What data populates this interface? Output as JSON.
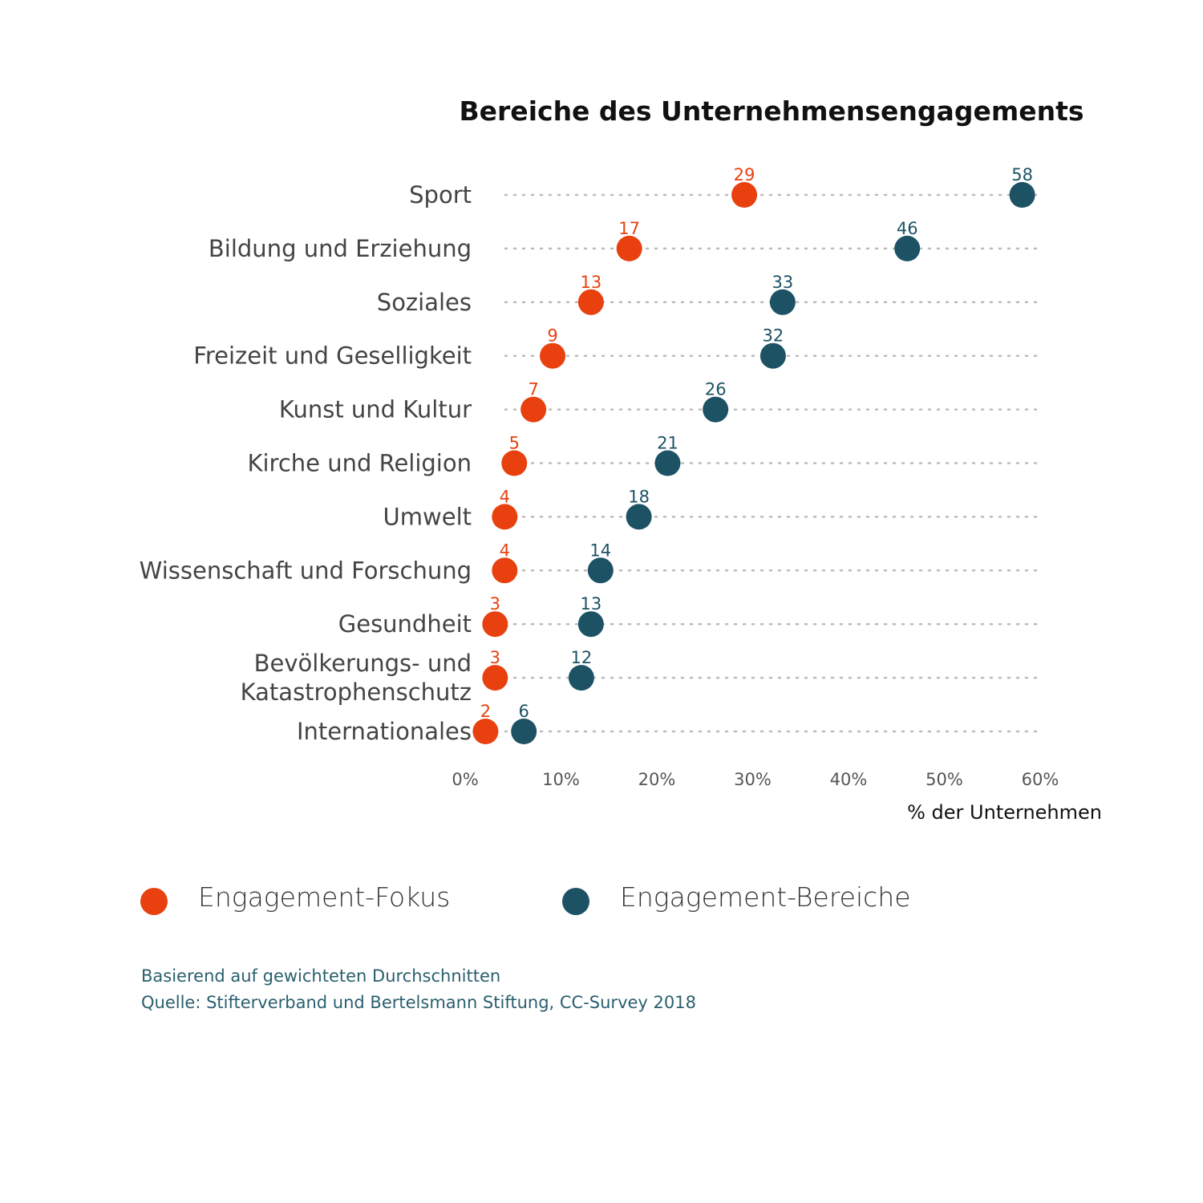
{
  "colors": {
    "focus": "#e8410f",
    "bereiche": "#1d5265",
    "grid": "#bbbbbb"
  },
  "chart_data": {
    "type": "scatter",
    "title": "Bereiche des Unternehmensengagements",
    "xlabel": "% der Unternehmen",
    "xlim": [
      0,
      60
    ],
    "xticks": [
      "0%",
      "10%",
      "20%",
      "30%",
      "40%",
      "50%",
      "60%"
    ],
    "grid": "horizontal dotted",
    "legend_position": "bottom",
    "categories": [
      [
        "Sport"
      ],
      [
        "Bildung und Erziehung"
      ],
      [
        "Soziales"
      ],
      [
        "Freizeit und Geselligkeit"
      ],
      [
        "Kunst und Kultur"
      ],
      [
        "Kirche und Religion"
      ],
      [
        "Umwelt"
      ],
      [
        "Wissenschaft und Forschung"
      ],
      [
        "Gesundheit"
      ],
      [
        "Bevölkerungs-  und",
        "Katastrophenschutz"
      ],
      [
        "Internationales"
      ]
    ],
    "series": [
      {
        "name": "Engagement-Fokus",
        "color": "#e8410f",
        "values": [
          29,
          17,
          13,
          9,
          7,
          5,
          4,
          4,
          3,
          3,
          2
        ]
      },
      {
        "name": "Engagement-Bereiche",
        "color": "#1d5265",
        "values": [
          58,
          46,
          33,
          32,
          26,
          21,
          18,
          14,
          13,
          12,
          6
        ]
      }
    ]
  },
  "notes": [
    "Basierend auf gewichteten Durchschnitten",
    "Quelle: Stifterverband und Bertelsmann Stiftung, CC-Survey 2018"
  ]
}
